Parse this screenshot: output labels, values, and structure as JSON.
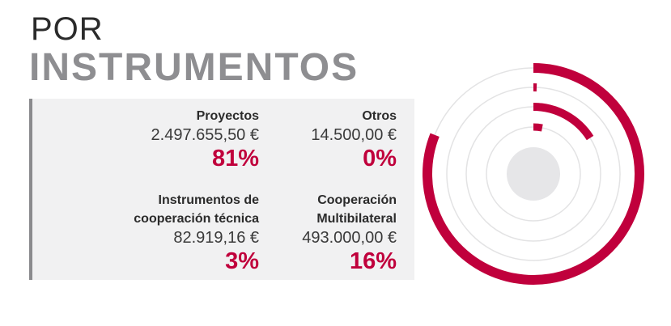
{
  "header": {
    "line1": "POR",
    "line2": "INSTRUMENTOS"
  },
  "colors": {
    "accent": "#c0003c",
    "track": "#e3e3e4",
    "center": "#e6e6e8"
  },
  "items": [
    {
      "label_lines": [
        "Proyectos"
      ],
      "amount": "2.497.655,50 €",
      "percent": "81%"
    },
    {
      "label_lines": [
        "Otros"
      ],
      "amount": "14.500,00 €",
      "percent": "0%"
    },
    {
      "label_lines": [
        "Instrumentos de",
        "cooperación técnica"
      ],
      "amount": "82.919,16 €",
      "percent": "3%"
    },
    {
      "label_lines": [
        "Cooperación",
        "Multibilateral"
      ],
      "amount": "493.000,00 €",
      "percent": "16%"
    }
  ],
  "chart_data": {
    "type": "radial-bar",
    "categories": [
      "Proyectos",
      "Otros",
      "Multibilateral",
      "Instrumentos de cooperación técnica"
    ],
    "values": [
      81,
      0,
      16,
      3
    ],
    "unit": "%"
  }
}
